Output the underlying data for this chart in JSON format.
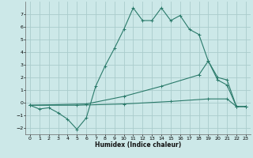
{
  "xlabel": "Humidex (Indice chaleur)",
  "bg_color": "#cce8e8",
  "grid_color": "#aacccc",
  "line_color": "#2a7a6a",
  "xlim": [
    -0.5,
    23.5
  ],
  "ylim": [
    -2.5,
    8.0
  ],
  "xticks": [
    0,
    1,
    2,
    3,
    4,
    5,
    6,
    7,
    8,
    9,
    10,
    11,
    12,
    13,
    14,
    15,
    16,
    17,
    18,
    19,
    20,
    21,
    22,
    23
  ],
  "yticks": [
    -2,
    -1,
    0,
    1,
    2,
    3,
    4,
    5,
    6,
    7
  ],
  "series1": [
    [
      0,
      -0.2
    ],
    [
      1,
      -0.5
    ],
    [
      2,
      -0.4
    ],
    [
      3,
      -0.8
    ],
    [
      4,
      -1.3
    ],
    [
      5,
      -2.1
    ],
    [
      6,
      -1.2
    ],
    [
      7,
      1.3
    ],
    [
      8,
      2.9
    ],
    [
      9,
      4.3
    ],
    [
      10,
      5.8
    ],
    [
      11,
      7.5
    ],
    [
      12,
      6.5
    ],
    [
      13,
      6.5
    ],
    [
      14,
      7.5
    ],
    [
      15,
      6.5
    ],
    [
      16,
      6.9
    ],
    [
      17,
      5.8
    ],
    [
      18,
      5.4
    ],
    [
      19,
      3.3
    ],
    [
      20,
      1.8
    ],
    [
      21,
      1.4
    ],
    [
      22,
      -0.3
    ],
    [
      23,
      -0.3
    ]
  ],
  "series2": [
    [
      0,
      -0.2
    ],
    [
      6,
      -0.1
    ],
    [
      10,
      0.5
    ],
    [
      14,
      1.3
    ],
    [
      18,
      2.2
    ],
    [
      19,
      3.3
    ],
    [
      20,
      2.0
    ],
    [
      21,
      1.8
    ],
    [
      22,
      -0.3
    ],
    [
      23,
      -0.3
    ]
  ],
  "series3": [
    [
      0,
      -0.2
    ],
    [
      5,
      -0.2
    ],
    [
      10,
      -0.1
    ],
    [
      15,
      0.1
    ],
    [
      19,
      0.3
    ],
    [
      21,
      0.3
    ],
    [
      22,
      -0.3
    ],
    [
      23,
      -0.3
    ]
  ]
}
